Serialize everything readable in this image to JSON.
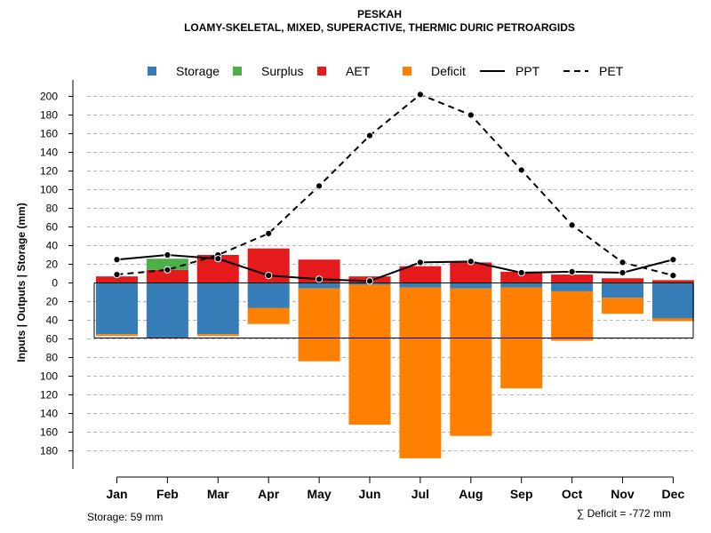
{
  "chart_data": {
    "type": "bar",
    "title": "PESKAH",
    "subtitle": "LOAMY-SKELETAL, MIXED, SUPERACTIVE, THERMIC DURIC PETROARGIDS",
    "ylabel": "Inputs | Outputs | Storage    (mm)",
    "xlabel": "",
    "ylim": [
      -195,
      208
    ],
    "yticks": [
      200,
      180,
      160,
      140,
      120,
      100,
      80,
      60,
      40,
      20,
      0,
      -20,
      -40,
      -60,
      -80,
      -100,
      -120,
      -140,
      -160,
      -180
    ],
    "ytick_labels": [
      "200",
      "180",
      "160",
      "140",
      "120",
      "100",
      "80",
      "60",
      "40",
      "20",
      "0",
      "20",
      "40",
      "60",
      "80",
      "100",
      "120",
      "140",
      "160",
      "180"
    ],
    "grid": true,
    "legend_position": "top",
    "categories": [
      "Jan",
      "Feb",
      "Mar",
      "Apr",
      "May",
      "Jun",
      "Jul",
      "Aug",
      "Sep",
      "Oct",
      "Nov",
      "Dec"
    ],
    "storage_capacity": 59,
    "series": [
      {
        "name": "Storage",
        "color": "#377eb8",
        "values": [
          -55,
          -59,
          -55,
          -27,
          -6,
          -2,
          -5,
          -6,
          -5,
          -9,
          -16,
          -38
        ]
      },
      {
        "name": "Surplus",
        "color": "#4daf4a",
        "values": [
          0,
          12,
          0,
          0,
          0,
          0,
          0,
          0,
          0,
          0,
          0,
          0
        ]
      },
      {
        "name": "AET",
        "color": "#e41a1c",
        "values": [
          7,
          14,
          30,
          37,
          25,
          7,
          18,
          22,
          12,
          9,
          5,
          3
        ]
      },
      {
        "name": "Deficit",
        "color": "#ff7f00",
        "values": [
          -2,
          0,
          -2,
          -17,
          -78,
          -150,
          -183,
          -158,
          -108,
          -53,
          -17,
          -3
        ]
      },
      {
        "name": "PPT",
        "color": "#000000",
        "style": "solid",
        "values": [
          25,
          30,
          26,
          8,
          4,
          2,
          22,
          23,
          11,
          12,
          11,
          25
        ]
      },
      {
        "name": "PET",
        "color": "#000000",
        "style": "dashed",
        "values": [
          9,
          14,
          30,
          53,
          104,
          158,
          202,
          180,
          121,
          62,
          22,
          8
        ]
      }
    ]
  },
  "footer": {
    "storage_text": "Storage: 59 mm",
    "deficit_text": "∑ Deficit = -772 mm"
  }
}
